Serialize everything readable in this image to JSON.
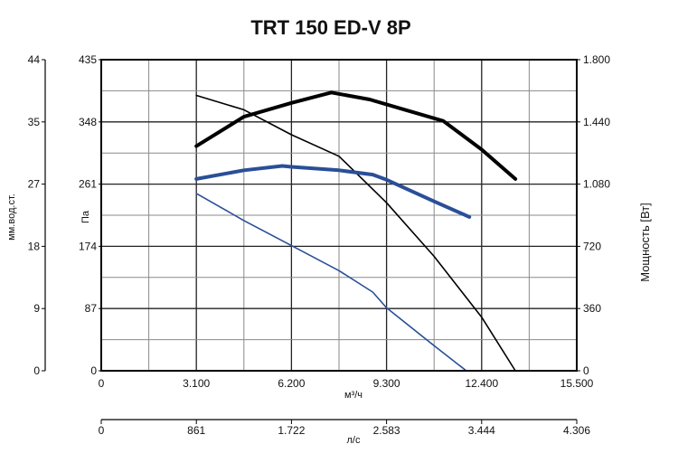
{
  "chart_data": {
    "type": "line",
    "title": "TRT 150 ED-V 8P",
    "x_axis_top": {
      "label": "м³/ч",
      "range": [
        0,
        15500
      ],
      "ticks": [
        "0",
        "3.100",
        "6.200",
        "9.300",
        "12.400",
        "15.500"
      ]
    },
    "x_axis_bottom": {
      "label": "л/с",
      "range": [
        0,
        4306
      ],
      "ticks": [
        "0",
        "861",
        "1.722",
        "2.583",
        "3.444",
        "4.306"
      ]
    },
    "y_axis_pa": {
      "label": "Па",
      "range": [
        0,
        435
      ],
      "ticks": [
        "0",
        "87",
        "174",
        "261",
        "348",
        "435"
      ]
    },
    "y_axis_mm": {
      "label": "мм.вод.ст.",
      "range": [
        0,
        44
      ],
      "ticks": [
        "0",
        "9",
        "18",
        "27",
        "35",
        "44"
      ]
    },
    "y_axis_power": {
      "label": "Мощность [Вт]",
      "range": [
        0,
        1800
      ],
      "ticks": [
        "0",
        "360",
        "720",
        "1.080",
        "1.440",
        "1.800"
      ]
    },
    "grid": true,
    "series": [
      {
        "axis": "power",
        "color": "#000000",
        "stroke": "heavy",
        "points": [
          [
            3100,
            1300
          ],
          [
            4650,
            1470
          ],
          [
            6200,
            1550
          ],
          [
            7500,
            1610
          ],
          [
            8750,
            1570
          ],
          [
            9900,
            1510
          ],
          [
            11150,
            1445
          ],
          [
            12400,
            1280
          ],
          [
            13500,
            1110
          ]
        ]
      },
      {
        "axis": "pressure",
        "color": "#000000",
        "stroke": "thin",
        "points": [
          [
            3100,
            385
          ],
          [
            4650,
            365
          ],
          [
            6200,
            330
          ],
          [
            7750,
            300
          ],
          [
            9300,
            235
          ],
          [
            10850,
            160
          ],
          [
            12400,
            75
          ],
          [
            13500,
            0
          ]
        ]
      },
      {
        "axis": "power",
        "color": "#2a4f98",
        "stroke": "heavy",
        "points": [
          [
            3100,
            1110
          ],
          [
            4650,
            1160
          ],
          [
            5900,
            1185
          ],
          [
            6200,
            1180
          ],
          [
            7750,
            1160
          ],
          [
            8850,
            1135
          ],
          [
            9300,
            1105
          ],
          [
            10850,
            980
          ],
          [
            12000,
            890
          ]
        ]
      },
      {
        "axis": "pressure",
        "color": "#2a4f98",
        "stroke": "thin",
        "points": [
          [
            3100,
            248
          ],
          [
            4650,
            210
          ],
          [
            6200,
            175
          ],
          [
            7750,
            140
          ],
          [
            8850,
            110
          ],
          [
            9300,
            88
          ],
          [
            10850,
            35
          ],
          [
            11900,
            0
          ]
        ]
      }
    ]
  }
}
